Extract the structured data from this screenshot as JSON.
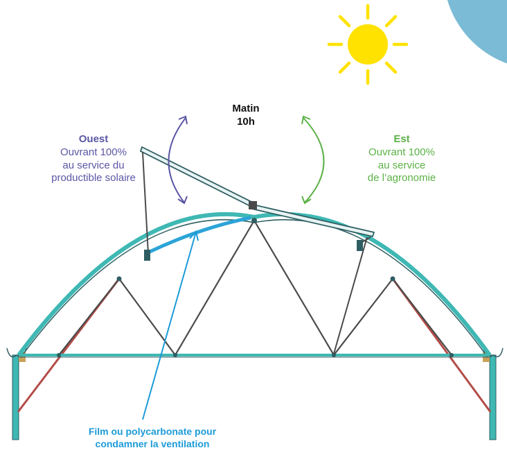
{
  "colors": {
    "sun": "#FFE200",
    "sky_corner": "#7BBBD6",
    "west": "#5B56A4",
    "east": "#5BB146",
    "film": "#1C9BD8",
    "frame_teal": "#3FB8B4",
    "frame_dark": "#2E5E62",
    "truss_dark": "#4A4A4A",
    "truss_red": "#B24C47",
    "panel_blue": "#2BA4D8"
  },
  "icons": {
    "sun": "sun-icon",
    "west_arrow": "curved-double-arrow-icon",
    "east_arrow": "curved-double-arrow-icon",
    "film_arrow": "arrow-up-icon"
  },
  "time": {
    "line1": "Matin",
    "line2": "10h"
  },
  "west": {
    "title": "Ouest",
    "line1": "Ouvrant 100%",
    "line2": "au service du",
    "line3": "productible solaire"
  },
  "east": {
    "title": "Est",
    "line1": "Ouvrant 100%",
    "line2": "au service",
    "line3": "de l’agronomie"
  },
  "film": {
    "line1": "Film ou polycarbonate pour",
    "line2": "condamner la ventilation"
  }
}
